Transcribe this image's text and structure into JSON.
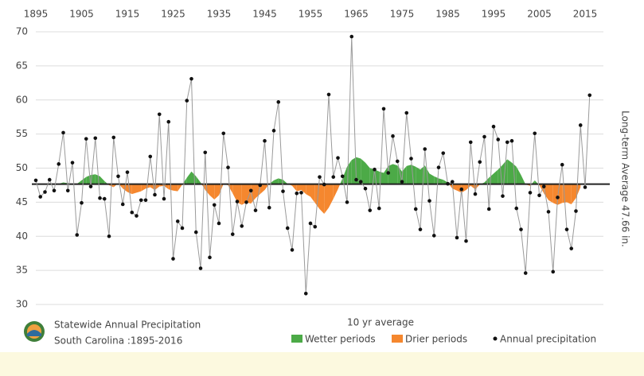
{
  "chart_data": {
    "type": "line",
    "caption": [
      "Statewide Annual Precipitation",
      "South Carolina :1895-2016"
    ],
    "legend_title": "10 yr average",
    "average": 47.66,
    "average_label": "Long-term Average 47.66 in.",
    "xlim": [
      1895,
      2019
    ],
    "ylim": [
      30,
      70
    ],
    "xticks": [
      1895,
      1905,
      1915,
      1925,
      1935,
      1945,
      1955,
      1965,
      1975,
      1985,
      1995,
      2005,
      2015
    ],
    "yticks": [
      30,
      35,
      40,
      45,
      50,
      55,
      60,
      65,
      70
    ],
    "grid": true,
    "x": [
      1895,
      1896,
      1897,
      1898,
      1899,
      1900,
      1901,
      1902,
      1903,
      1904,
      1905,
      1906,
      1907,
      1908,
      1909,
      1910,
      1911,
      1912,
      1913,
      1914,
      1915,
      1916,
      1917,
      1918,
      1919,
      1920,
      1921,
      1922,
      1923,
      1924,
      1925,
      1926,
      1927,
      1928,
      1929,
      1930,
      1931,
      1932,
      1933,
      1934,
      1935,
      1936,
      1937,
      1938,
      1939,
      1940,
      1941,
      1942,
      1943,
      1944,
      1945,
      1946,
      1947,
      1948,
      1949,
      1950,
      1951,
      1952,
      1953,
      1954,
      1955,
      1956,
      1957,
      1958,
      1959,
      1960,
      1961,
      1962,
      1963,
      1964,
      1965,
      1966,
      1967,
      1968,
      1969,
      1970,
      1971,
      1972,
      1973,
      1974,
      1975,
      1976,
      1977,
      1978,
      1979,
      1980,
      1981,
      1982,
      1983,
      1984,
      1985,
      1986,
      1987,
      1988,
      1989,
      1990,
      1991,
      1992,
      1993,
      1994,
      1995,
      1996,
      1997,
      1998,
      1999,
      2000,
      2001,
      2002,
      2003,
      2004,
      2005,
      2006,
      2007,
      2008,
      2009,
      2010,
      2011,
      2012,
      2013,
      2014,
      2015,
      2016
    ],
    "ten_year_average": {
      "above_name": "Wetter periods",
      "above_color": "#4caa47",
      "below_name": "Drier periods",
      "below_color": "#f5872e",
      "values": [
        null,
        null,
        null,
        null,
        null,
        47.7,
        47.9,
        47.8,
        47.6,
        47.7,
        48.2,
        48.7,
        49.0,
        49.1,
        48.8,
        48.1,
        47.5,
        47.2,
        47.8,
        47.0,
        46.5,
        46.2,
        46.4,
        46.6,
        47.0,
        47.2,
        46.8,
        47.3,
        47.4,
        46.9,
        46.7,
        46.6,
        47.6,
        48.6,
        49.5,
        48.8,
        47.9,
        46.8,
        46.0,
        45.4,
        46.0,
        47.7,
        47.5,
        46.3,
        45.0,
        44.6,
        45.0,
        44.8,
        45.6,
        46.2,
        46.8,
        47.7,
        48.2,
        48.5,
        48.3,
        47.7,
        47.4,
        46.6,
        46.8,
        46.2,
        45.8,
        44.9,
        44.0,
        43.3,
        44.2,
        45.5,
        46.9,
        48.5,
        50.2,
        51.2,
        51.6,
        51.4,
        50.8,
        50.0,
        49.8,
        49.5,
        49.3,
        50.3,
        50.6,
        50.4,
        49.5,
        50.3,
        50.5,
        50.2,
        49.8,
        50.4,
        49.2,
        48.8,
        48.5,
        48.3,
        47.9,
        47.0,
        46.7,
        46.4,
        46.8,
        47.4,
        46.9,
        47.6,
        47.9,
        48.6,
        49.2,
        49.8,
        50.5,
        51.3,
        50.8,
        50.2,
        49.0,
        47.6,
        47.4,
        48.2,
        47.5,
        46.3,
        45.3,
        44.9,
        44.6,
        44.9,
        45.0,
        44.7,
        45.6,
        47.2,
        null,
        null
      ]
    },
    "series": [
      {
        "name": "Annual precipitation",
        "color": "#111111",
        "line_color": "#9a9a9a",
        "values": [
          48.2,
          45.8,
          46.5,
          48.3,
          46.7,
          50.6,
          55.2,
          46.7,
          50.8,
          40.2,
          44.9,
          54.3,
          47.3,
          54.4,
          45.6,
          45.5,
          40.0,
          54.5,
          48.8,
          44.7,
          49.4,
          43.5,
          43.0,
          45.3,
          45.3,
          51.7,
          46.1,
          57.9,
          45.5,
          56.8,
          36.7,
          42.2,
          41.2,
          59.9,
          63.1,
          40.6,
          35.3,
          52.3,
          36.9,
          44.6,
          41.9,
          55.1,
          50.1,
          40.3,
          45.1,
          41.5,
          45.0,
          46.7,
          43.8,
          47.5,
          54.0,
          44.2,
          55.5,
          59.7,
          46.6,
          41.2,
          38.0,
          46.3,
          46.4,
          31.6,
          41.9,
          41.4,
          48.7,
          47.6,
          60.8,
          48.7,
          51.5,
          48.8,
          45.0,
          69.3,
          48.3,
          48.0,
          47.0,
          43.8,
          49.8,
          44.1,
          58.7,
          49.3,
          54.7,
          51.0,
          48.0,
          58.1,
          51.4,
          44.0,
          41.0,
          52.8,
          45.2,
          40.1,
          50.1,
          52.2,
          47.7,
          48.0,
          39.8,
          46.9,
          39.3,
          53.8,
          46.2,
          50.9,
          54.6,
          44.0,
          56.1,
          54.2,
          45.9,
          53.8,
          54.0,
          44.1,
          41.0,
          34.6,
          46.4,
          55.1,
          46.0,
          47.3,
          43.6,
          34.8,
          45.7,
          50.5,
          41.0,
          38.2,
          43.7,
          56.3,
          47.2,
          60.7
        ]
      }
    ]
  }
}
